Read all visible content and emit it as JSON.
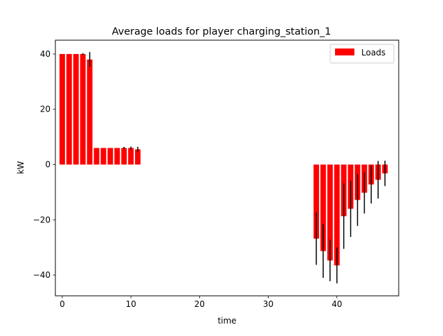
{
  "chart_data": {
    "type": "bar",
    "title": "Average loads for player charging_station_1",
    "xlabel": "time",
    "ylabel": "kW",
    "xlim": [
      -1,
      49
    ],
    "ylim": [
      -47.5,
      45
    ],
    "xticks": [
      0,
      10,
      20,
      30,
      40
    ],
    "yticks": [
      -40,
      -20,
      0,
      20,
      40
    ],
    "legend_position": "top-right",
    "series": [
      {
        "name": "Loads",
        "color": "#ff0000",
        "x": [
          0,
          1,
          2,
          3,
          4,
          5,
          6,
          7,
          8,
          9,
          10,
          11,
          37,
          38,
          39,
          40,
          41,
          42,
          43,
          44,
          45,
          46,
          47
        ],
        "values": [
          40,
          40,
          40,
          40,
          38,
          6,
          6,
          6,
          6,
          6,
          6,
          5.5,
          -26.8,
          -31.3,
          -34.7,
          -36.5,
          -18.7,
          -16,
          -12.8,
          -10.2,
          -7.2,
          -5.5,
          -3.2
        ],
        "errors": [
          0,
          0,
          0,
          0.3,
          2.7,
          0,
          0,
          0,
          0,
          0.4,
          0.5,
          0.9,
          9.5,
          9.7,
          7.5,
          6.5,
          11.8,
          10.2,
          9.4,
          7.5,
          6.9,
          6.8,
          4.6
        ]
      }
    ]
  }
}
